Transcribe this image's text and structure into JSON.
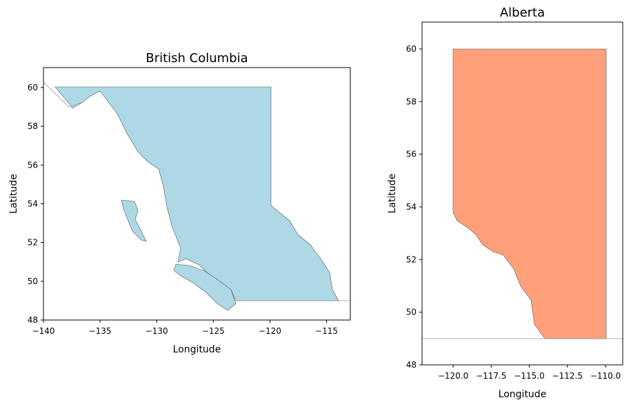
{
  "chart_data": [
    {
      "type": "map",
      "title": "British Columbia",
      "xlabel": "Longitude",
      "ylabel": "Latitude",
      "color": "#add8e6",
      "xlim": [
        -140,
        -112.9
      ],
      "ylim": [
        48,
        61.03
      ],
      "xticks": [
        {
          "value": -140,
          "label": "−140"
        },
        {
          "value": -135,
          "label": "−135"
        },
        {
          "value": -130,
          "label": "−130"
        },
        {
          "value": -125,
          "label": "−125"
        },
        {
          "value": -120,
          "label": "−120"
        },
        {
          "value": -115,
          "label": "−115"
        }
      ],
      "yticks": [
        48,
        50,
        52,
        54,
        56,
        58,
        60
      ]
    },
    {
      "type": "map",
      "title": "Alberta",
      "xlabel": "Longitude",
      "ylabel": "Latitude",
      "color": "#ffa07a",
      "xlim": [
        -122.04,
        -108.87
      ],
      "ylim": [
        48,
        61.02
      ],
      "xticks": [
        {
          "value": -120,
          "label": "−120.0"
        },
        {
          "value": -117.5,
          "label": "−117.5"
        },
        {
          "value": -115,
          "label": "−115.0"
        },
        {
          "value": -112.5,
          "label": "−112.5"
        },
        {
          "value": -110,
          "label": "−110.0"
        }
      ],
      "yticks": [
        48,
        50,
        52,
        54,
        56,
        58,
        60
      ]
    }
  ]
}
